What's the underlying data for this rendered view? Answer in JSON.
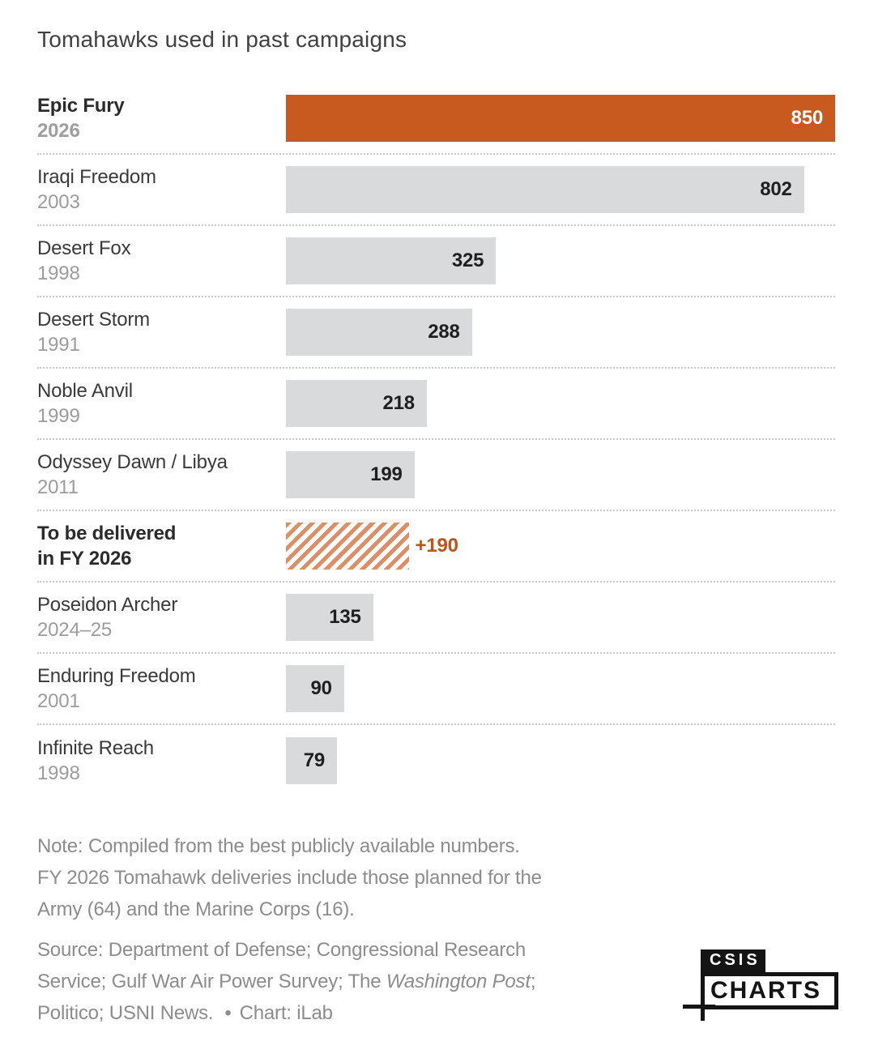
{
  "chart_data": {
    "type": "bar",
    "orientation": "horizontal",
    "title": "Tomahawks used in past campaigns",
    "max_value": 850,
    "grid": false,
    "legend": false,
    "rows": [
      {
        "campaign": "Epic Fury",
        "year": "2026",
        "value": 850,
        "value_label": "850",
        "style": "accent"
      },
      {
        "campaign": "Iraqi Freedom",
        "year": "2003",
        "value": 802,
        "value_label": "802",
        "style": "gray"
      },
      {
        "campaign": "Desert Fox",
        "year": "1998",
        "value": 325,
        "value_label": "325",
        "style": "gray"
      },
      {
        "campaign": "Desert Storm",
        "year": "1991",
        "value": 288,
        "value_label": "288",
        "style": "gray"
      },
      {
        "campaign": "Noble Anvil",
        "year": "1999",
        "value": 218,
        "value_label": "218",
        "style": "gray"
      },
      {
        "campaign": "Odyssey Dawn / Libya",
        "year": "2011",
        "value": 199,
        "value_label": "199",
        "style": "gray"
      },
      {
        "campaign": "To be delivered",
        "year": "in FY 2026",
        "value": 190,
        "value_label": "+190",
        "style": "hatched"
      },
      {
        "campaign": "Poseidon Archer",
        "year": "2024–25",
        "value": 135,
        "value_label": "135",
        "style": "gray"
      },
      {
        "campaign": "Enduring Freedom",
        "year": "2001",
        "value": 90,
        "value_label": "90",
        "style": "gray"
      },
      {
        "campaign": "Infinite Reach",
        "year": "1998",
        "value": 79,
        "value_label": "79",
        "style": "gray"
      }
    ]
  },
  "note": {
    "line1": "Note: Compiled from the best publicly available numbers.",
    "line2": "FY 2026 Tomahawk deliveries include those planned for the",
    "line3": "Army (64) and the Marine Corps (16)."
  },
  "source": {
    "line1": "Source: Department of Defense; Congressional Research",
    "line2_prefix": "Service; Gulf War Air Power Survey; The ",
    "line2_italic": "Washington Post",
    "line2_suffix": ";",
    "line3": "Politico; USNI News.",
    "bullet": "•",
    "credit": "Chart: iLab"
  },
  "logo": {
    "line1": "CSIS",
    "line2": "CHARTS"
  },
  "colors": {
    "accent_orange": "#C85A20",
    "hatch_stripe_orange": "#DC8F66",
    "plus_value_orange": "#BE5317",
    "bar_gray": "#D8DADB",
    "value_dark": "#1F1F1F",
    "value_on_accent": "#FFFFFF",
    "campaign_text": "#3A3A3A",
    "year_text": "#9C9C9C",
    "title_text": "#414141",
    "note_text": "#8C8C8C",
    "logo_black": "#141414",
    "background": "#FFFFFF"
  }
}
